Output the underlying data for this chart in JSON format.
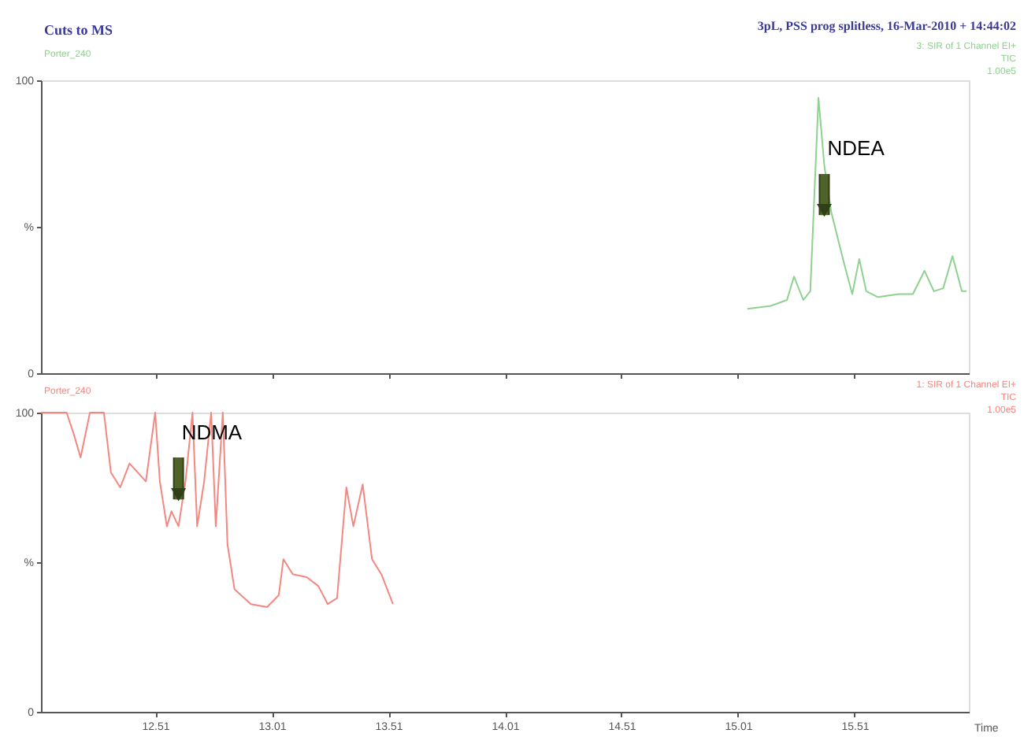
{
  "chart_data": [
    {
      "type": "line",
      "title": "Cuts to MS",
      "annotations": [
        "Porter_240",
        "3pL, PSS prog splitless, 16-Mar-2010 + 14:44:02",
        "3: SIR of 1 Channel EI+",
        "TIC",
        "1.00e5",
        {
          "text": "NDEA",
          "x": 15.38,
          "y": 54
        }
      ],
      "xlim": [
        12.02,
        16.0
      ],
      "xticks": [
        {
          "value": 12.51,
          "label": null
        },
        {
          "value": 13.01,
          "label": null
        },
        {
          "value": 13.51,
          "label": null
        },
        {
          "value": 14.01,
          "label": null
        },
        {
          "value": 14.51,
          "label": null
        },
        {
          "value": 15.01,
          "label": null
        },
        {
          "value": 15.51,
          "label": null
        }
      ],
      "ylim": [
        0,
        100
      ],
      "yticks": [
        0,
        {
          "value": 50,
          "label": "%"
        },
        100
      ],
      "tick_labels": "y",
      "grid": false,
      "series": [
        {
          "color": "#8fd18f",
          "x": [
            15.05,
            15.15,
            15.22,
            15.25,
            15.29,
            15.32,
            15.355,
            15.38,
            15.41,
            15.46,
            15.5,
            15.53,
            15.56,
            15.61,
            15.7,
            15.76,
            15.81,
            15.85,
            15.89,
            15.93,
            15.97,
            15.99
          ],
          "values": [
            22,
            23,
            25,
            33,
            25,
            28,
            94,
            71,
            55,
            39,
            27,
            39,
            28,
            26,
            27,
            27,
            35,
            28,
            29,
            40,
            28,
            28
          ]
        }
      ]
    },
    {
      "type": "line",
      "xlabel": "Time",
      "annotations": [
        "Porter_240",
        "1: SIR of 1 Channel EI+",
        "TIC",
        "1.00e5",
        {
          "text": "NDMA",
          "x": 12.61,
          "y": 71
        }
      ],
      "xlim": [
        12.02,
        16.0
      ],
      "xticks": [
        12.51,
        13.01,
        13.51,
        14.01,
        14.51,
        15.01,
        15.51
      ],
      "ylim": [
        0,
        100
      ],
      "yticks": [
        0,
        {
          "value": 50,
          "label": "%"
        },
        100
      ],
      "grid": false,
      "series": [
        {
          "color": "#f4877f",
          "x": [
            12.02,
            12.13,
            12.16,
            12.19,
            12.23,
            12.29,
            12.32,
            12.36,
            12.4,
            12.47,
            12.51,
            12.53,
            12.56,
            12.58,
            12.61,
            12.64,
            12.67,
            12.69,
            12.72,
            12.75,
            12.77,
            12.8,
            12.82,
            12.85,
            12.92,
            12.99,
            13.04,
            13.06,
            13.1,
            13.16,
            13.21,
            13.25,
            13.29,
            13.33,
            13.36,
            13.4,
            13.44,
            13.48,
            13.53
          ],
          "values": [
            100,
            100,
            93,
            85,
            100,
            100,
            80,
            75,
            83,
            77,
            100,
            77,
            62,
            67,
            62,
            77,
            100,
            62,
            77,
            100,
            62,
            100,
            56,
            41,
            36,
            35,
            39,
            51,
            46,
            45,
            42,
            36,
            38,
            75,
            62,
            76,
            51,
            46,
            36
          ]
        }
      ]
    }
  ]
}
